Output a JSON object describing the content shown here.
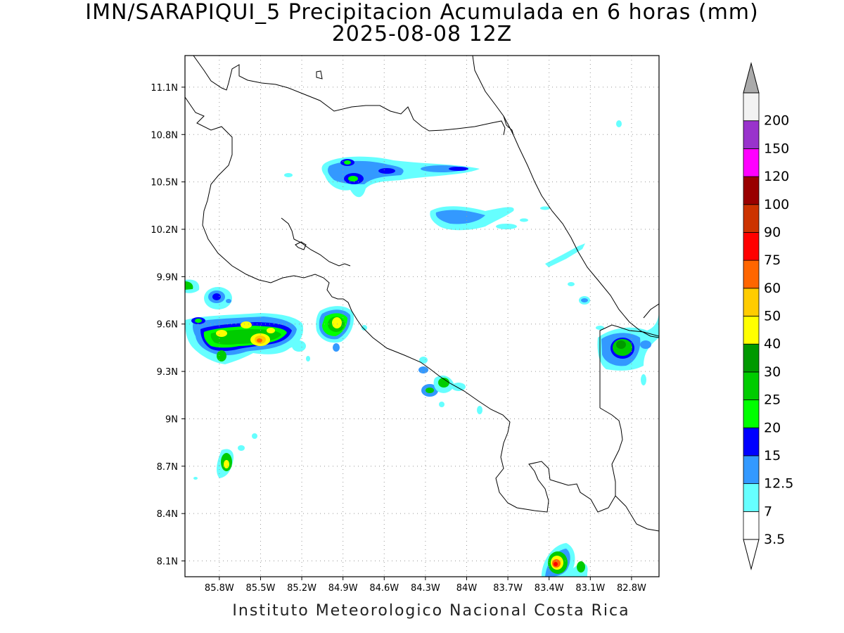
{
  "title": {
    "line1": "IMN/SARAPIQUI_5 Precipitacion Acumulada en 6 horas (mm)",
    "line2": "2025-08-08 12Z"
  },
  "footer": "Instituto Meteorologico Nacional Costa Rica",
  "map": {
    "lon_range": [
      -86.05,
      -82.6
    ],
    "lat_range": [
      8.0,
      11.3
    ],
    "y_ticks": [
      "11.1N",
      "10.8N",
      "10.5N",
      "10.2N",
      "9.9N",
      "9.6N",
      "9.3N",
      "9N",
      "8.7N",
      "8.4N",
      "8.1N"
    ],
    "x_ticks": [
      "85.8W",
      "85.5W",
      "85.2W",
      "84.9W",
      "84.6W",
      "84.3W",
      "84W",
      "83.7W",
      "83.4W",
      "83.1W",
      "82.8W"
    ],
    "grid": "dotted",
    "outline_color": "#000000"
  },
  "colorbar": {
    "labels": [
      "3.5",
      "7",
      "12.5",
      "15",
      "20",
      "25",
      "30",
      "40",
      "50",
      "60",
      "75",
      "90",
      "100",
      "120",
      "150",
      "200"
    ],
    "colors": [
      "#ffffff",
      "#66ffff",
      "#3399ff",
      "#0000ff",
      "#00ff00",
      "#00cc00",
      "#009900",
      "#ffff00",
      "#ffcc00",
      "#ff6600",
      "#ff0000",
      "#cc3300",
      "#990000",
      "#ff00ff",
      "#9933cc",
      "#f2f2f2"
    ],
    "under_color": "#ffffff",
    "over_color": "#aaaaaa"
  }
}
